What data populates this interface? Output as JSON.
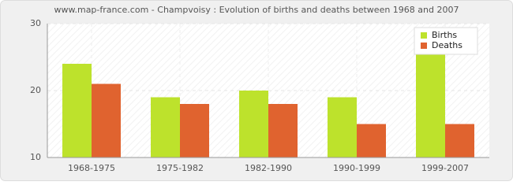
{
  "chart_data": {
    "type": "bar",
    "title": "www.map-france.com - Champvoisy : Evolution of births and deaths between 1968 and 2007",
    "categories": [
      "1968-1975",
      "1975-1982",
      "1982-1990",
      "1990-1999",
      "1999-2007"
    ],
    "series": [
      {
        "name": "Births",
        "color": "#bde22c",
        "values": [
          24,
          19,
          20,
          19,
          29
        ]
      },
      {
        "name": "Deaths",
        "color": "#e0632f",
        "values": [
          21,
          18,
          18,
          15,
          15
        ]
      }
    ],
    "ylim": [
      10,
      30
    ],
    "yticks": [
      10,
      20,
      30
    ],
    "grid": true,
    "legend": "top-right"
  }
}
